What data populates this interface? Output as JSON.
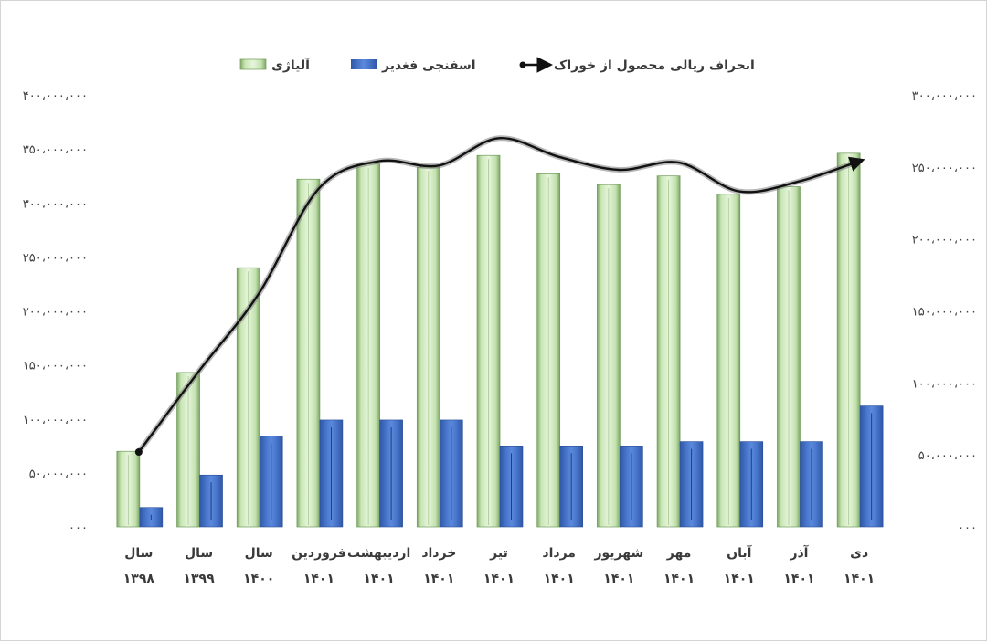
{
  "chart_data": {
    "type": "bar",
    "categories": [
      [
        "سال",
        "۱۳۹۸"
      ],
      [
        "سال",
        "۱۳۹۹"
      ],
      [
        "سال",
        "۱۴۰۰"
      ],
      [
        "فروردین",
        "۱۴۰۱"
      ],
      [
        "اردیبهشت",
        "۱۴۰۱"
      ],
      [
        "خرداد",
        "۱۴۰۱"
      ],
      [
        "تیر",
        "۱۴۰۱"
      ],
      [
        "مرداد",
        "۱۴۰۱"
      ],
      [
        "شهریور",
        "۱۴۰۱"
      ],
      [
        "مهر",
        "۱۴۰۱"
      ],
      [
        "آبان",
        "۱۴۰۱"
      ],
      [
        "آذر",
        "۱۴۰۱"
      ],
      [
        "دی",
        "۱۴۰۱"
      ]
    ],
    "series": [
      {
        "name": "آلیاژی",
        "kind": "bar",
        "axis": "left",
        "color": "#b7dba0",
        "values": [
          70000000,
          143000000,
          240000000,
          322000000,
          336000000,
          333000000,
          344000000,
          327000000,
          317000000,
          325000000,
          308000000,
          315000000,
          346000000
        ]
      },
      {
        "name": "اسفنجی فغدیر",
        "kind": "bar",
        "axis": "left",
        "color": "#4472c4",
        "values": [
          18000000,
          48000000,
          84000000,
          99000000,
          99000000,
          99000000,
          75000000,
          75000000,
          75000000,
          79000000,
          79000000,
          79000000,
          112000000
        ]
      },
      {
        "name": "انحراف ریالی محصول از خوراک",
        "kind": "line",
        "axis": "right",
        "color": "#1a1a1a",
        "values": [
          52000000,
          108000000,
          162000000,
          235000000,
          254000000,
          251000000,
          270000000,
          257000000,
          248000000,
          253000000,
          233000000,
          240000000,
          254000000
        ]
      }
    ],
    "y_left": {
      "range": [
        0,
        400000000
      ],
      "ticks": [
        0,
        50000000,
        100000000,
        150000000,
        200000000,
        250000000,
        300000000,
        350000000,
        400000000
      ],
      "tick_labels": [
        "۰۰۰",
        "۵۰،۰۰۰،۰۰۰",
        "۱۰۰،۰۰۰،۰۰۰",
        "۱۵۰،۰۰۰،۰۰۰",
        "۲۰۰،۰۰۰،۰۰۰",
        "۲۵۰،۰۰۰،۰۰۰",
        "۳۰۰،۰۰۰،۰۰۰",
        "۳۵۰،۰۰۰،۰۰۰",
        "۴۰۰،۰۰۰،۰۰۰"
      ]
    },
    "y_right": {
      "range": [
        0,
        300000000
      ],
      "ticks": [
        0,
        50000000,
        100000000,
        150000000,
        200000000,
        250000000,
        300000000
      ],
      "tick_labels": [
        "۰۰۰",
        "۵۰،۰۰۰،۰۰۰",
        "۱۰۰،۰۰۰،۰۰۰",
        "۱۵۰،۰۰۰،۰۰۰",
        "۲۰۰،۰۰۰،۰۰۰",
        "۲۵۰،۰۰۰،۰۰۰",
        "۳۰۰،۰۰۰،۰۰۰"
      ]
    },
    "legend_position": "top-center",
    "grid": false
  }
}
